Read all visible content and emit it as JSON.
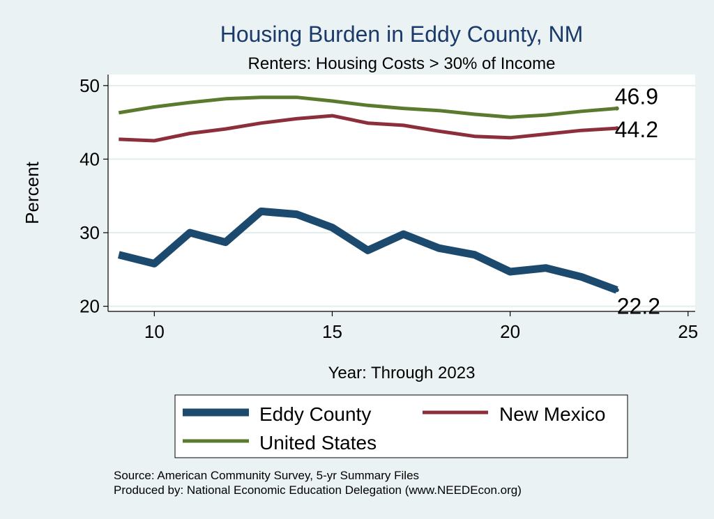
{
  "chart_data": {
    "type": "line",
    "title": "Housing Burden in Eddy County, NM",
    "subtitle": "Renters: Housing Costs > 30% of Income",
    "xlabel": "Year: Through 2023",
    "ylabel": "Percent",
    "xlim": [
      8.7,
      25.2
    ],
    "ylim": [
      19.3,
      51.5
    ],
    "x_ticks": [
      10,
      15,
      20,
      25
    ],
    "y_ticks": [
      20,
      30,
      40,
      50
    ],
    "grid": true,
    "legend_position": "bottom",
    "x": [
      9,
      10,
      11,
      12,
      13,
      14,
      15,
      16,
      17,
      18,
      19,
      20,
      21,
      22,
      23
    ],
    "series": [
      {
        "name": "Eddy County",
        "color": "#1b4a6e",
        "values": [
          27.0,
          25.8,
          30.0,
          28.7,
          32.9,
          32.5,
          30.7,
          27.6,
          29.8,
          27.9,
          27.0,
          24.7,
          25.2,
          24.0,
          22.2
        ],
        "end_label": "22.2"
      },
      {
        "name": "New Mexico",
        "color": "#8c2f3b",
        "values": [
          42.7,
          42.5,
          43.5,
          44.1,
          44.9,
          45.5,
          45.9,
          44.9,
          44.6,
          43.8,
          43.1,
          42.9,
          43.4,
          43.9,
          44.2
        ],
        "end_label": "44.2"
      },
      {
        "name": "United States",
        "color": "#5a7a2e",
        "values": [
          46.3,
          47.1,
          47.7,
          48.2,
          48.4,
          48.4,
          47.9,
          47.3,
          46.9,
          46.6,
          46.1,
          45.7,
          46.0,
          46.5,
          46.9
        ],
        "end_label": "46.9"
      }
    ]
  },
  "footer": {
    "source": "Source: American Community Survey, 5-yr Summary Files",
    "produced_by": "Produced by: National Economic Education Delegation (www.NEEDEcon.org)"
  }
}
